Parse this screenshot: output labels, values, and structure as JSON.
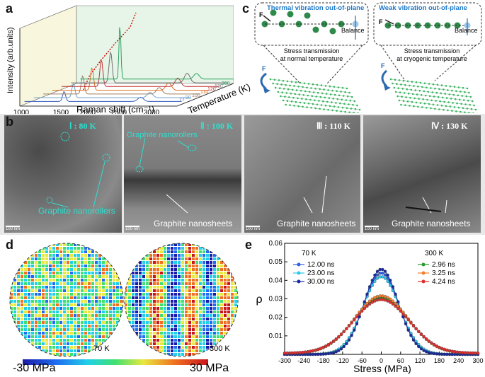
{
  "panel_labels": {
    "a": "a",
    "b": "b",
    "c": "c",
    "d": "d",
    "e": "e"
  },
  "panel_a": {
    "chart_data": {
      "type": "line",
      "title": "",
      "xlabel": "Raman shift (cm⁻¹)",
      "ylabel": "Intensity (arb.units)",
      "zlabel": "Temperature (K)",
      "x_ticks": [
        "1000",
        "1500",
        "2000",
        "2500",
        "3000"
      ],
      "xlim": [
        1000,
        3300
      ],
      "series": [
        {
          "name": "77",
          "color": "#3a5fbf",
          "peaks": [
            1580,
            2700
          ]
        },
        {
          "name": "90",
          "color": "#6aa0c8",
          "peaks": [
            1580,
            2700
          ]
        },
        {
          "name": "100",
          "color": "#a08060",
          "peaks": [
            1580,
            2700
          ]
        },
        {
          "name": "110",
          "color": "#e07020",
          "peaks": [
            1580,
            2700
          ]
        },
        {
          "name": "120",
          "color": "#c03030",
          "peaks": [
            1580,
            2700
          ]
        },
        {
          "name": "130",
          "color": "#707070",
          "peaks": [
            1580,
            2700
          ]
        },
        {
          "name": "300",
          "color": "#2aa060",
          "peaks": [
            1580,
            2700
          ]
        }
      ]
    }
  },
  "panel_c": {
    "left_title": "Thermal vibration out-of-plane",
    "right_title": "Weak vibration out-of-plane",
    "force_label": "F",
    "balance_label": "Balance",
    "left_caption_1": "Stress transmission",
    "left_caption_2": "at normal temperature",
    "right_caption_1": "Stress transmission",
    "right_caption_2": "at cryogenic temperature"
  },
  "panel_b": {
    "images": [
      {
        "tag": "Ⅰ : 80 K",
        "tag_color": "#2ee0d0",
        "caption": "Graphite nanorollers",
        "scale": "100 nm"
      },
      {
        "tag": "Ⅱ : 100 K",
        "tag_color": "#2ee0d0",
        "caption": "Graphite nanosheets",
        "extra": "Graphite nanorollers",
        "scale": "100 nm"
      },
      {
        "tag": "Ⅲ : 110 K",
        "tag_color": "#ffffff",
        "caption": "Graphite nanosheets",
        "scale": "100 nm"
      },
      {
        "tag": "Ⅳ : 130 K",
        "tag_color": "#ffffff",
        "caption": "Graphite nanosheets",
        "scale": "100 nm"
      }
    ]
  },
  "panel_d": {
    "left_label": "70 K",
    "right_label": "300 K",
    "colorbar_min": "-30 MPa",
    "colorbar_max": "30 MPa"
  },
  "panel_e": {
    "chart_data": {
      "type": "scatter",
      "xlabel": "Stress (MPa)",
      "ylabel": "ρ",
      "xlim": [
        -300,
        300
      ],
      "ylim": [
        0,
        0.06
      ],
      "x_ticks": [
        -300,
        -240,
        -180,
        -120,
        -60,
        0,
        60,
        120,
        180,
        240,
        300
      ],
      "y_ticks": [
        0.01,
        0.02,
        0.03,
        0.04,
        0.05,
        0.06
      ],
      "legend_group_1": "70 K",
      "legend_group_2": "300 K",
      "series": [
        {
          "name": "12.00 ns",
          "group": "70 K",
          "color": "#3060e0",
          "peak": 0.044,
          "sigma": 55
        },
        {
          "name": "23.00 ns",
          "group": "70 K",
          "color": "#30c8e8",
          "peak": 0.042,
          "sigma": 57
        },
        {
          "name": "30.00 ns",
          "group": "70 K",
          "color": "#1a2aa0",
          "peak": 0.046,
          "sigma": 53
        },
        {
          "name": "2.96 ns",
          "group": "300 K",
          "color": "#2a9a30",
          "peak": 0.03,
          "sigma": 85
        },
        {
          "name": "3.25 ns",
          "group": "300 K",
          "color": "#f08030",
          "peak": 0.031,
          "sigma": 83
        },
        {
          "name": "4.24 ns",
          "group": "300 K",
          "color": "#e03030",
          "peak": 0.029,
          "sigma": 86
        }
      ]
    }
  }
}
